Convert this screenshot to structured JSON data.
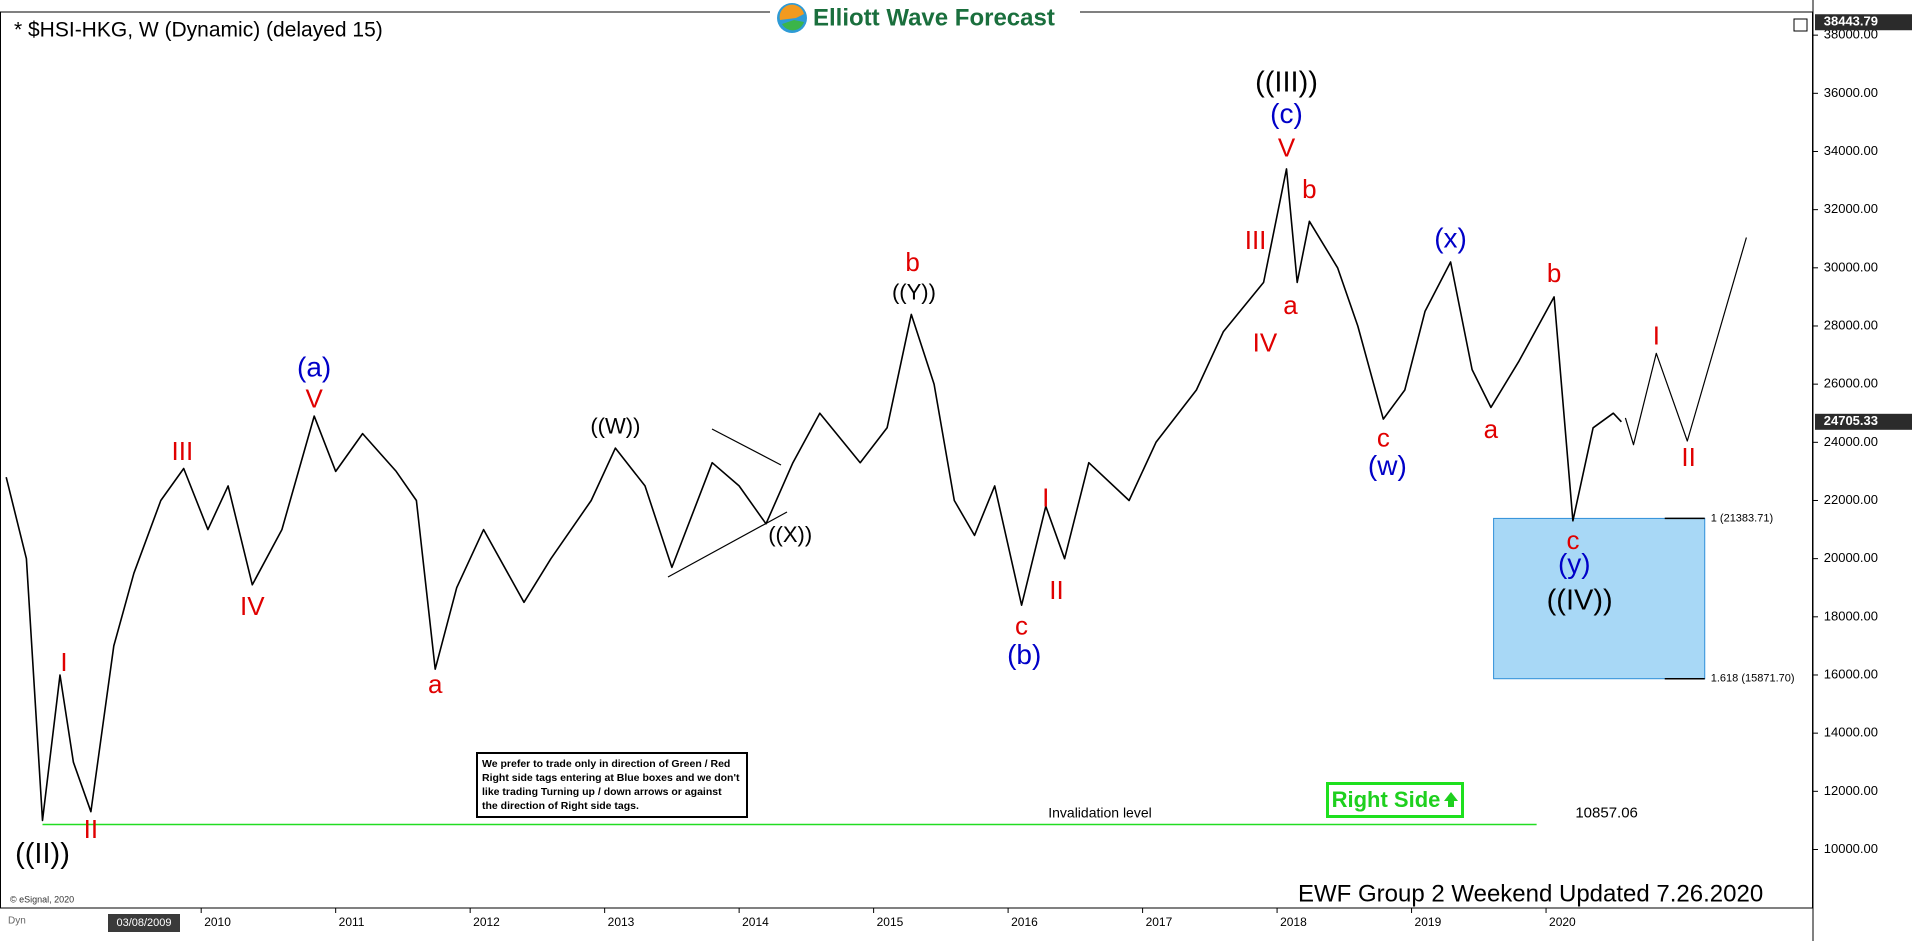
{
  "chart_data": {
    "type": "line",
    "title": "* $HSI-HKG, W (Dynamic) (delayed 15)",
    "brand": "Elliott Wave Forecast",
    "footer": "EWF Group 2 Weekend Updated 7.26.2020",
    "copyright": "© eSignal, 2020",
    "dyn_label": "Dyn",
    "date_label": "03/08/2009",
    "xlim": [
      2008.504,
      2021.985
    ],
    "ylim": [
      7988,
      38796
    ],
    "xticks": [
      2010,
      2011,
      2012,
      2013,
      2014,
      2015,
      2016,
      2017,
      2018,
      2019,
      2020
    ],
    "yticks": [
      {
        "value": 10000,
        "label": "10000.00"
      },
      {
        "value": 12000,
        "label": "12000.00"
      },
      {
        "value": 14000,
        "label": "14000.00"
      },
      {
        "value": 16000,
        "label": "16000.00"
      },
      {
        "value": 18000,
        "label": "18000.00"
      },
      {
        "value": 20000,
        "label": "20000.00"
      },
      {
        "value": 22000,
        "label": "22000.00"
      },
      {
        "value": 24000,
        "label": "24000.00"
      },
      {
        "value": 26000,
        "label": "26000.00"
      },
      {
        "value": 28000,
        "label": "28000.00"
      },
      {
        "value": 30000,
        "label": "30000.00"
      },
      {
        "value": 32000,
        "label": "32000.00"
      },
      {
        "value": 34000,
        "label": "34000.00"
      },
      {
        "value": 36000,
        "label": "36000.00"
      },
      {
        "value": 38000,
        "label": "38000.00"
      }
    ],
    "high_marker": 38443.79,
    "last_price": 24705.33,
    "series": [
      {
        "color": "#000000",
        "x": [
          2008.55,
          2008.7,
          2008.82,
          2008.95,
          2009.05,
          2009.18,
          2009.35,
          2009.5,
          2009.7,
          2009.87,
          2010.05,
          2010.2,
          2010.38,
          2010.6,
          2010.84,
          2011.0,
          2011.2,
          2011.45,
          2011.6,
          2011.74,
          2011.9,
          2012.1,
          2012.4,
          2012.6,
          2012.9,
          2013.08,
          2013.3,
          2013.5,
          2013.8,
          2014.0,
          2014.2,
          2014.4,
          2014.6,
          2014.9,
          2015.1,
          2015.28,
          2015.45,
          2015.6,
          2015.75,
          2015.9,
          2016.1,
          2016.28,
          2016.42,
          2016.6,
          2016.9,
          2017.1,
          2017.4,
          2017.6,
          2017.9,
          2018.07,
          2018.15,
          2018.24,
          2018.45,
          2018.6,
          2018.79,
          2018.95,
          2019.1,
          2019.29,
          2019.45,
          2019.59,
          2019.8,
          2020.06,
          2020.2,
          2020.35,
          2020.5,
          2020.56
        ],
        "values": [
          22800,
          20000,
          11000,
          16000,
          13000,
          11300,
          17000,
          19500,
          22000,
          23100,
          21000,
          22500,
          19100,
          21000,
          24900,
          23000,
          24300,
          23000,
          22000,
          16200,
          19000,
          21000,
          18500,
          20000,
          22000,
          23800,
          22500,
          19700,
          23300,
          22500,
          21200,
          23300,
          25000,
          23300,
          24500,
          28400,
          26000,
          22000,
          20800,
          22500,
          18400,
          21800,
          20000,
          23300,
          22000,
          24000,
          25800,
          27800,
          29500,
          33400,
          29500,
          31600,
          30000,
          28000,
          24800,
          25800,
          28500,
          30200,
          26500,
          25200,
          26800,
          29000,
          21300,
          24500,
          25000,
          24705
        ]
      }
    ],
    "projection": {
      "color": "#000000",
      "x": [
        2020.59,
        2020.65,
        2020.82,
        2021.05,
        2021.49
      ],
      "values": [
        24840,
        23918,
        27061,
        24044,
        31043
      ]
    },
    "target_box": {
      "x": [
        2019.61,
        2021.18
      ],
      "color": "#a8d8f6",
      "levels": [
        {
          "value": 21383.71,
          "label": "1 (21383.71)"
        },
        {
          "value": 15871.7,
          "label": "1.618 (15871.70)"
        }
      ]
    },
    "invalidation": {
      "label": "Invalidation level",
      "value": 10857.06,
      "x": [
        2008.82,
        2019.93
      ],
      "color": "#22dd22"
    },
    "annotations": [
      {
        "text": "((II))",
        "x": 2008.82,
        "y": 9794,
        "color": "#000000"
      },
      {
        "text": "I",
        "x": 2008.98,
        "y": 16374,
        "color": "#e00000"
      },
      {
        "text": "II",
        "x": 2009.18,
        "y": 10633,
        "color": "#e00000"
      },
      {
        "text": "III",
        "x": 2009.86,
        "y": 23625,
        "color": "#e00000"
      },
      {
        "text": "IV",
        "x": 2010.38,
        "y": 18302,
        "color": "#e00000"
      },
      {
        "text": "V",
        "x": 2010.84,
        "y": 25427,
        "color": "#e00000"
      },
      {
        "text": "(a)",
        "x": 2010.84,
        "y": 26517,
        "color": "#0000c8"
      },
      {
        "text": "a",
        "x": 2011.74,
        "y": 15620,
        "color": "#e00000"
      },
      {
        "text": "((W))",
        "x": 2013.08,
        "y": 24505,
        "color": "#000000"
      },
      {
        "text": "((X))",
        "x": 2014.38,
        "y": 20775,
        "color": "#000000"
      },
      {
        "text": "b",
        "x": 2015.29,
        "y": 30121,
        "color": "#e00000"
      },
      {
        "text": "((Y))",
        "x": 2015.3,
        "y": 29115,
        "color": "#000000"
      },
      {
        "text": "c",
        "x": 2016.1,
        "y": 17632,
        "color": "#e00000"
      },
      {
        "text": "(b)",
        "x": 2016.12,
        "y": 16626,
        "color": "#0000c8"
      },
      {
        "text": "I",
        "x": 2016.28,
        "y": 22032,
        "color": "#e00000"
      },
      {
        "text": "II",
        "x": 2016.36,
        "y": 18847,
        "color": "#e00000"
      },
      {
        "text": "III",
        "x": 2017.84,
        "y": 30875,
        "color": "#e00000"
      },
      {
        "text": "IV",
        "x": 2017.91,
        "y": 27355,
        "color": "#e00000"
      },
      {
        "text": "V",
        "x": 2018.07,
        "y": 34060,
        "color": "#e00000"
      },
      {
        "text": "(c)",
        "x": 2018.07,
        "y": 35234,
        "color": "#0000c8"
      },
      {
        "text": "((III))",
        "x": 2018.07,
        "y": 36324,
        "color": "#000000"
      },
      {
        "text": "b",
        "x": 2018.24,
        "y": 32636,
        "color": "#e00000"
      },
      {
        "text": "a",
        "x": 2018.1,
        "y": 28654,
        "color": "#e00000"
      },
      {
        "text": "c",
        "x": 2018.79,
        "y": 24086,
        "color": "#e00000"
      },
      {
        "text": "(w)",
        "x": 2018.82,
        "y": 23122,
        "color": "#0000c8"
      },
      {
        "text": "(x)",
        "x": 2019.29,
        "y": 30959,
        "color": "#0000c8"
      },
      {
        "text": "b",
        "x": 2020.06,
        "y": 29744,
        "color": "#e00000"
      },
      {
        "text": "a",
        "x": 2019.59,
        "y": 24379,
        "color": "#e00000"
      },
      {
        "text": "c",
        "x": 2020.2,
        "y": 20565,
        "color": "#e00000"
      },
      {
        "text": "(y)",
        "x": 2020.21,
        "y": 19769,
        "color": "#0000c8"
      },
      {
        "text": "((IV))",
        "x": 2020.25,
        "y": 18512,
        "color": "#000000"
      },
      {
        "text": "I",
        "x": 2020.82,
        "y": 27606,
        "color": "#e00000"
      },
      {
        "text": "II",
        "x": 2021.06,
        "y": 23415,
        "color": "#e00000"
      }
    ],
    "note_lines": [
      "We prefer to trade only in direction of Green / Red",
      "Right side tags entering at Blue boxes and we don't",
      "like trading Turning up / down arrows or against",
      "the direction of Right side tags."
    ],
    "right_side_tag": "Right Side"
  }
}
